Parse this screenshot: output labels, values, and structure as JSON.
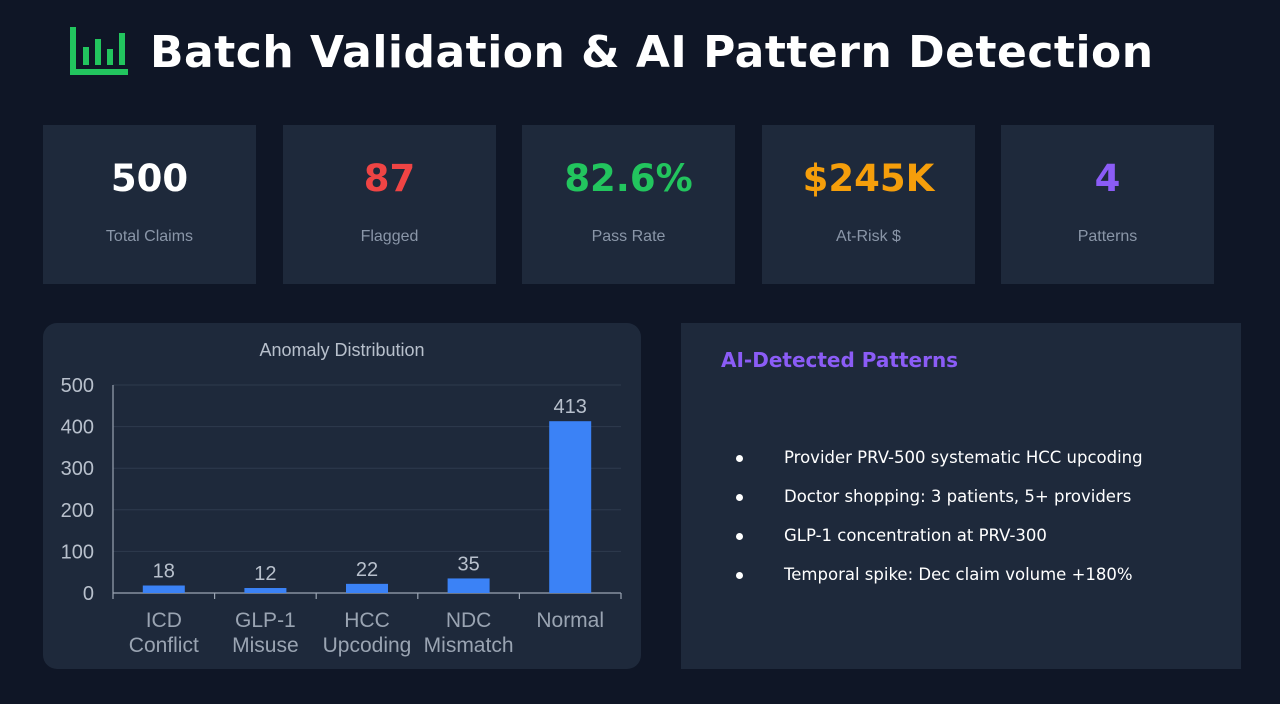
{
  "header": {
    "title": "Batch Validation & AI Pattern Detection",
    "icon": "bar-chart-icon",
    "icon_color": "#22c55e"
  },
  "kpis": [
    {
      "value": "500",
      "label": "Total Claims",
      "color": "#ffffff"
    },
    {
      "value": "87",
      "label": "Flagged",
      "color": "#ef4444"
    },
    {
      "value": "82.6%",
      "label": "Pass Rate",
      "color": "#22c55e"
    },
    {
      "value": "$245K",
      "label": "At-Risk $",
      "color": "#f59e0b"
    },
    {
      "value": "4",
      "label": "Patterns",
      "color": "#8b5cf6"
    }
  ],
  "chart_data": {
    "type": "bar",
    "title": "Anomaly Distribution",
    "categories": [
      [
        "ICD",
        "Conflict"
      ],
      [
        "GLP-1",
        "Misuse"
      ],
      [
        "HCC",
        "Upcoding"
      ],
      [
        "NDC",
        "Mismatch"
      ],
      [
        "Normal"
      ]
    ],
    "values": [
      18,
      12,
      22,
      35,
      413
    ],
    "ylim": [
      0,
      500
    ],
    "yticks": [
      "0",
      "100",
      "200",
      "300",
      "400",
      "500"
    ],
    "grid": true,
    "bar_color": "#3b82f6"
  },
  "patterns": {
    "title": "AI-Detected Patterns",
    "items": [
      "Provider PRV-500 systematic HCC upcoding",
      "Doctor shopping: 3 patients, 5+ providers",
      "GLP-1 concentration at PRV-300",
      "Temporal spike: Dec claim volume +180%"
    ]
  }
}
